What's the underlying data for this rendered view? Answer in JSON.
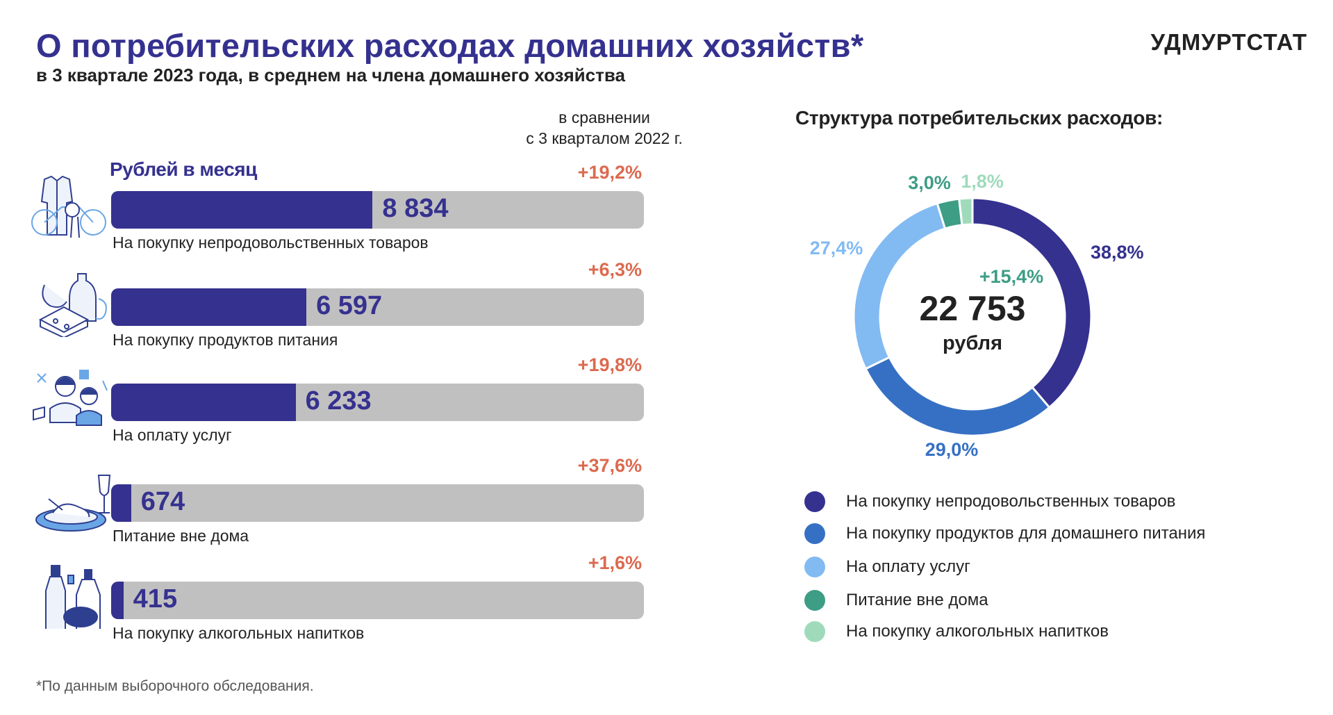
{
  "header": {
    "title": "О потребительских расходах домашних хозяйств*",
    "subtitle": "в 3 квартале 2023 года, в среднем на члена домашнего хозяйства",
    "logo": "УДМУРТСТАТ"
  },
  "comparison_note": {
    "line1": "в сравнении",
    "line2": "с 3 кварталом 2022 г."
  },
  "unit_label": "Рублей в месяц",
  "footnote": "*По данным выборочного обследования.",
  "colors": {
    "accent": "#35318f",
    "bar_track": "#c1c0c1",
    "change_text": "#dc6a4f",
    "change_total": "#3d9d85"
  },
  "chart_data": [
    {
      "type": "bar",
      "orientation": "horizontal",
      "title": "",
      "unit": "Рублей в месяц",
      "categories": [
        "На покупку непродовольственных товаров",
        "На покупку продуктов питания",
        "На оплату услуг",
        "Питание вне дома",
        "На покупку алкогольных напитков"
      ],
      "values": [
        8834,
        6597,
        6233,
        674,
        415
      ],
      "value_labels": [
        "8 834",
        "6 597",
        "6 233",
        "674",
        "415"
      ],
      "changes": [
        "+19,2%",
        "+6,3%",
        "+19,8%",
        "+37,6%",
        "+1,6%"
      ],
      "icons": [
        "clothes-bike-icon",
        "food-products-icon",
        "services-people-icon",
        "restaurant-plate-icon",
        "alcohol-bottles-icon"
      ],
      "xlim": [
        0,
        18000
      ]
    },
    {
      "type": "pie",
      "style": "donut",
      "title": "Структура потребительских расходов:",
      "center_value": "22 753",
      "center_unit": "рубля",
      "center_change": "+15,4%",
      "labels": [
        "На покупку непродовольственных товаров",
        "На покупку продуктов для домашнего питания",
        "На оплату услуг",
        "Питание вне дома",
        "На покупку алкогольных напитков"
      ],
      "values": [
        38.8,
        29.0,
        27.4,
        3.0,
        1.8
      ],
      "value_labels": [
        "38,8%",
        "29,0%",
        "27,4%",
        "3,0%",
        "1,8%"
      ],
      "colors": [
        "#35318f",
        "#3670c4",
        "#82baf2",
        "#3d9d85",
        "#9fdbbb"
      ],
      "legend": "bottom"
    }
  ]
}
